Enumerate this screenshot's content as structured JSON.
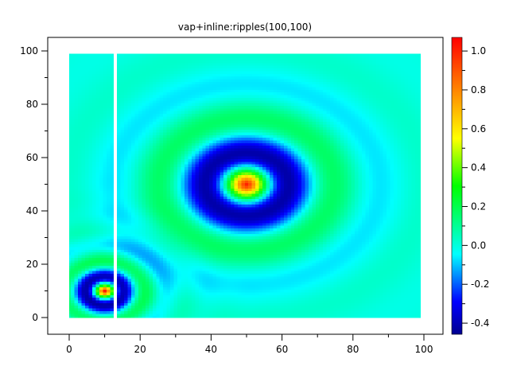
{
  "chart_data": {
    "type": "heatmap",
    "title": "vap+inline:ripples(100,100)",
    "xlabel": "",
    "ylabel": "",
    "xlim": [
      -6,
      105
    ],
    "ylim": [
      -6,
      105
    ],
    "grid_size": [
      100,
      100
    ],
    "x_range": [
      0,
      99
    ],
    "y_range": [
      0,
      99
    ],
    "missing_columns": [
      13
    ],
    "ripples": [
      {
        "center": [
          50,
          50
        ],
        "peak": 1.0,
        "first_trough_radius": 13,
        "trough_value": -0.4
      },
      {
        "center": [
          10,
          10
        ],
        "peak": 1.0,
        "first_trough_radius": 6,
        "trough_value": -0.4
      }
    ],
    "x_ticks": [
      "0",
      "20",
      "40",
      "60",
      "80",
      "100"
    ],
    "x_tick_values": [
      0,
      20,
      40,
      60,
      80,
      100
    ],
    "y_ticks": [
      "0",
      "20",
      "40",
      "60",
      "80",
      "100"
    ],
    "y_tick_values": [
      0,
      20,
      40,
      60,
      80,
      100
    ],
    "colorbar": {
      "range": [
        -0.457,
        1.07
      ],
      "ticks": [
        "-0.4",
        "-0.2",
        "0.0",
        "0.2",
        "0.4",
        "0.6",
        "0.8",
        "1.0"
      ],
      "tick_values": [
        -0.4,
        -0.2,
        0.0,
        0.2,
        0.4,
        0.6,
        0.8,
        1.0
      ],
      "colormap": [
        "#00008f",
        "#0000ff",
        "#00ffff",
        "#00ff00",
        "#ffff00",
        "#ff8000",
        "#ff0000"
      ]
    },
    "grid": false
  }
}
